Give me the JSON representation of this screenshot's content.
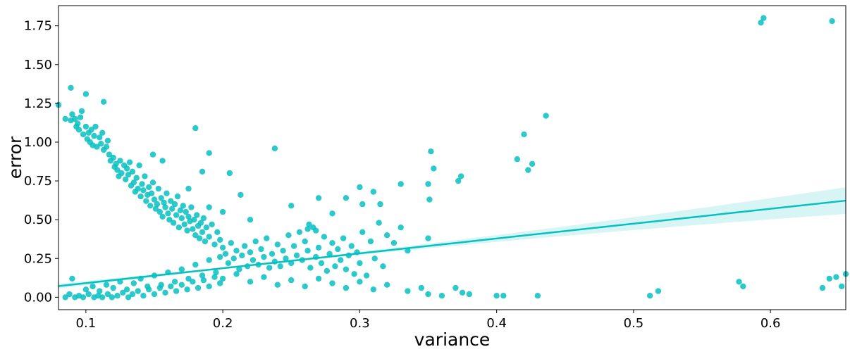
{
  "chart_data": {
    "type": "scatter",
    "title": "",
    "xlabel": "variance",
    "ylabel": "error",
    "xlim": [
      0.08,
      0.655
    ],
    "ylim": [
      -0.08,
      1.88
    ],
    "xticks": [
      0.1,
      0.2,
      0.3,
      0.4,
      0.5,
      0.6
    ],
    "xtick_labels": [
      "0.1",
      "0.2",
      "0.3",
      "0.4",
      "0.5",
      "0.6"
    ],
    "yticks": [
      0.0,
      0.25,
      0.5,
      0.75,
      1.0,
      1.25,
      1.5,
      1.75
    ],
    "ytick_labels": [
      "0.00",
      "0.25",
      "0.50",
      "0.75",
      "1.00",
      "1.25",
      "1.50",
      "1.75"
    ],
    "grid": false,
    "legend": "none",
    "color": "#06c0c0",
    "band_color": "#b8ecec",
    "regression": {
      "slope": 0.958,
      "intercept": -0.0045,
      "x_range": [
        0.08,
        0.655
      ],
      "ci_upper_end": 0.7,
      "ci_lower_end": 0.54
    },
    "points": [
      [
        0.08,
        1.24
      ],
      [
        0.085,
        1.15
      ],
      [
        0.089,
        1.14
      ],
      [
        0.09,
        1.18
      ],
      [
        0.092,
        1.15
      ],
      [
        0.093,
        1.1
      ],
      [
        0.094,
        1.12
      ],
      [
        0.095,
        1.08
      ],
      [
        0.096,
        1.16
      ],
      [
        0.097,
        1.2
      ],
      [
        0.098,
        1.05
      ],
      [
        0.1,
        1.1
      ],
      [
        0.101,
        1.02
      ],
      [
        0.102,
        1.06
      ],
      [
        0.103,
        1.0
      ],
      [
        0.104,
        1.08
      ],
      [
        0.105,
        0.98
      ],
      [
        0.106,
        1.04
      ],
      [
        0.107,
        1.1
      ],
      [
        0.108,
        0.97
      ],
      [
        0.11,
        1.03
      ],
      [
        0.111,
        0.99
      ],
      [
        0.112,
        1.06
      ],
      [
        0.113,
        0.95
      ],
      [
        0.115,
        0.97
      ],
      [
        0.116,
        1.01
      ],
      [
        0.117,
        0.92
      ],
      [
        0.118,
        0.88
      ],
      [
        0.12,
        0.9
      ],
      [
        0.121,
        0.84
      ],
      [
        0.122,
        0.86
      ],
      [
        0.123,
        0.82
      ],
      [
        0.124,
        0.78
      ],
      [
        0.125,
        0.88
      ],
      [
        0.126,
        0.8
      ],
      [
        0.128,
        0.85
      ],
      [
        0.129,
        0.76
      ],
      [
        0.13,
        0.83
      ],
      [
        0.131,
        0.79
      ],
      [
        0.132,
        0.87
      ],
      [
        0.133,
        0.72
      ],
      [
        0.134,
        0.81
      ],
      [
        0.135,
        0.74
      ],
      [
        0.136,
        0.68
      ],
      [
        0.137,
        0.77
      ],
      [
        0.138,
        0.7
      ],
      [
        0.139,
        0.85
      ],
      [
        0.14,
        0.65
      ],
      [
        0.141,
        0.73
      ],
      [
        0.142,
        0.69
      ],
      [
        0.143,
        0.78
      ],
      [
        0.144,
        0.62
      ],
      [
        0.145,
        0.66
      ],
      [
        0.146,
        0.71
      ],
      [
        0.147,
        0.59
      ],
      [
        0.148,
        0.67
      ],
      [
        0.149,
        0.74
      ],
      [
        0.15,
        0.63
      ],
      [
        0.151,
        0.57
      ],
      [
        0.152,
        0.6
      ],
      [
        0.153,
        0.7
      ],
      [
        0.154,
        0.55
      ],
      [
        0.155,
        0.64
      ],
      [
        0.156,
        0.52
      ],
      [
        0.157,
        0.61
      ],
      [
        0.158,
        0.58
      ],
      [
        0.159,
        0.67
      ],
      [
        0.16,
        0.54
      ],
      [
        0.161,
        0.5
      ],
      [
        0.162,
        0.62
      ],
      [
        0.163,
        0.57
      ],
      [
        0.164,
        0.48
      ],
      [
        0.165,
        0.6
      ],
      [
        0.166,
        0.53
      ],
      [
        0.167,
        0.65
      ],
      [
        0.168,
        0.45
      ],
      [
        0.169,
        0.56
      ],
      [
        0.17,
        0.51
      ],
      [
        0.171,
        0.59
      ],
      [
        0.172,
        0.47
      ],
      [
        0.173,
        0.55
      ],
      [
        0.174,
        0.43
      ],
      [
        0.175,
        0.52
      ],
      [
        0.176,
        0.49
      ],
      [
        0.177,
        0.58
      ],
      [
        0.178,
        0.44
      ],
      [
        0.179,
        0.5
      ],
      [
        0.18,
        0.4
      ],
      [
        0.181,
        0.53
      ],
      [
        0.182,
        0.46
      ],
      [
        0.183,
        0.38
      ],
      [
        0.184,
        0.48
      ],
      [
        0.185,
        0.42
      ],
      [
        0.186,
        0.51
      ],
      [
        0.187,
        0.36
      ],
      [
        0.188,
        0.45
      ],
      [
        0.19,
        0.39
      ],
      [
        0.192,
        0.47
      ],
      [
        0.194,
        0.34
      ],
      [
        0.196,
        0.42
      ],
      [
        0.198,
        0.37
      ],
      [
        0.1,
        1.31
      ],
      [
        0.089,
        1.35
      ],
      [
        0.113,
        1.26
      ],
      [
        0.18,
        1.09
      ],
      [
        0.149,
        0.92
      ],
      [
        0.156,
        0.88
      ],
      [
        0.19,
        0.93
      ],
      [
        0.185,
        0.81
      ],
      [
        0.238,
        0.96
      ],
      [
        0.205,
        0.8
      ],
      [
        0.213,
        0.66
      ],
      [
        0.22,
        0.5
      ],
      [
        0.19,
        0.58
      ],
      [
        0.2,
        0.55
      ],
      [
        0.175,
        0.7
      ],
      [
        0.2,
        0.32
      ],
      [
        0.202,
        0.28
      ],
      [
        0.204,
        0.22
      ],
      [
        0.206,
        0.35
      ],
      [
        0.208,
        0.25
      ],
      [
        0.21,
        0.3
      ],
      [
        0.212,
        0.18
      ],
      [
        0.214,
        0.27
      ],
      [
        0.216,
        0.33
      ],
      [
        0.218,
        0.2
      ],
      [
        0.22,
        0.29
      ],
      [
        0.222,
        0.24
      ],
      [
        0.224,
        0.36
      ],
      [
        0.226,
        0.21
      ],
      [
        0.228,
        0.31
      ],
      [
        0.23,
        0.26
      ],
      [
        0.232,
        0.38
      ],
      [
        0.234,
        0.19
      ],
      [
        0.236,
        0.28
      ],
      [
        0.238,
        0.23
      ],
      [
        0.24,
        0.34
      ],
      [
        0.242,
        0.2
      ],
      [
        0.244,
        0.3
      ],
      [
        0.246,
        0.25
      ],
      [
        0.248,
        0.4
      ],
      [
        0.25,
        0.22
      ],
      [
        0.252,
        0.33
      ],
      [
        0.254,
        0.27
      ],
      [
        0.256,
        0.42
      ],
      [
        0.258,
        0.24
      ],
      [
        0.26,
        0.36
      ],
      [
        0.262,
        0.3
      ],
      [
        0.264,
        0.19
      ],
      [
        0.266,
        0.45
      ],
      [
        0.268,
        0.26
      ],
      [
        0.27,
        0.32
      ],
      [
        0.272,
        0.22
      ],
      [
        0.274,
        0.39
      ],
      [
        0.276,
        0.17
      ],
      [
        0.278,
        0.28
      ],
      [
        0.28,
        0.35
      ],
      [
        0.282,
        0.2
      ],
      [
        0.284,
        0.31
      ],
      [
        0.286,
        0.24
      ],
      [
        0.288,
        0.38
      ],
      [
        0.29,
        0.18
      ],
      [
        0.292,
        0.27
      ],
      [
        0.294,
        0.33
      ],
      [
        0.296,
        0.15
      ],
      [
        0.298,
        0.29
      ],
      [
        0.3,
        0.22
      ],
      [
        0.302,
        0.42
      ],
      [
        0.305,
        0.14
      ],
      [
        0.308,
        0.36
      ],
      [
        0.311,
        0.25
      ],
      [
        0.314,
        0.48
      ],
      [
        0.317,
        0.2
      ],
      [
        0.32,
        0.4
      ],
      [
        0.325,
        0.35
      ],
      [
        0.33,
        0.45
      ],
      [
        0.335,
        0.3
      ],
      [
        0.35,
        0.38
      ],
      [
        0.27,
        0.64
      ],
      [
        0.29,
        0.64
      ],
      [
        0.3,
        0.71
      ],
      [
        0.302,
        0.6
      ],
      [
        0.31,
        0.68
      ],
      [
        0.315,
        0.6
      ],
      [
        0.33,
        0.73
      ],
      [
        0.35,
        0.73
      ],
      [
        0.351,
        0.63
      ],
      [
        0.352,
        0.94
      ],
      [
        0.354,
        0.83
      ],
      [
        0.372,
        0.75
      ],
      [
        0.374,
        0.78
      ],
      [
        0.415,
        0.89
      ],
      [
        0.42,
        1.05
      ],
      [
        0.423,
        0.82
      ],
      [
        0.426,
        0.86
      ],
      [
        0.436,
        1.17
      ],
      [
        0.25,
        0.59
      ],
      [
        0.263,
        0.47
      ],
      [
        0.268,
        0.43
      ],
      [
        0.28,
        0.54
      ],
      [
        0.262,
        0.44
      ],
      [
        0.09,
        0.12
      ],
      [
        0.1,
        0.05
      ],
      [
        0.105,
        0.07
      ],
      [
        0.11,
        0.04
      ],
      [
        0.115,
        0.08
      ],
      [
        0.12,
        0.06
      ],
      [
        0.125,
        0.1
      ],
      [
        0.13,
        0.05
      ],
      [
        0.135,
        0.09
      ],
      [
        0.14,
        0.12
      ],
      [
        0.145,
        0.07
      ],
      [
        0.15,
        0.14
      ],
      [
        0.155,
        0.08
      ],
      [
        0.16,
        0.16
      ],
      [
        0.165,
        0.1
      ],
      [
        0.17,
        0.18
      ],
      [
        0.175,
        0.12
      ],
      [
        0.18,
        0.21
      ],
      [
        0.185,
        0.14
      ],
      [
        0.19,
        0.24
      ],
      [
        0.195,
        0.16
      ],
      [
        0.198,
        0.26
      ],
      [
        0.2,
        0.12
      ],
      [
        0.21,
        0.15
      ],
      [
        0.22,
        0.1
      ],
      [
        0.23,
        0.13
      ],
      [
        0.24,
        0.08
      ],
      [
        0.25,
        0.11
      ],
      [
        0.26,
        0.07
      ],
      [
        0.27,
        0.12
      ],
      [
        0.28,
        0.09
      ],
      [
        0.29,
        0.06
      ],
      [
        0.3,
        0.1
      ],
      [
        0.31,
        0.05
      ],
      [
        0.32,
        0.08
      ],
      [
        0.335,
        0.04
      ],
      [
        0.345,
        0.06
      ],
      [
        0.35,
        0.02
      ],
      [
        0.36,
        0.01
      ],
      [
        0.37,
        0.06
      ],
      [
        0.375,
        0.03
      ],
      [
        0.38,
        0.02
      ],
      [
        0.4,
        0.01
      ],
      [
        0.405,
        0.01
      ],
      [
        0.43,
        0.01
      ],
      [
        0.512,
        0.01
      ],
      [
        0.518,
        0.04
      ],
      [
        0.577,
        0.1
      ],
      [
        0.58,
        0.07
      ],
      [
        0.595,
        1.8
      ],
      [
        0.593,
        1.77
      ],
      [
        0.645,
        1.78
      ],
      [
        0.638,
        0.06
      ],
      [
        0.643,
        0.12
      ],
      [
        0.648,
        0.13
      ],
      [
        0.652,
        0.07
      ],
      [
        0.655,
        0.15
      ],
      [
        0.085,
        0.0
      ],
      [
        0.088,
        0.02
      ],
      [
        0.092,
        0.0
      ],
      [
        0.095,
        0.01
      ],
      [
        0.098,
        0.0
      ],
      [
        0.102,
        0.02
      ],
      [
        0.106,
        0.0
      ],
      [
        0.109,
        0.01
      ],
      [
        0.112,
        0.0
      ],
      [
        0.116,
        0.02
      ],
      [
        0.119,
        0.0
      ],
      [
        0.123,
        0.01
      ],
      [
        0.127,
        0.03
      ],
      [
        0.131,
        0.0
      ],
      [
        0.134,
        0.02
      ],
      [
        0.138,
        0.04
      ],
      [
        0.142,
        0.01
      ],
      [
        0.146,
        0.05
      ],
      [
        0.15,
        0.02
      ],
      [
        0.154,
        0.06
      ],
      [
        0.158,
        0.03
      ],
      [
        0.162,
        0.07
      ],
      [
        0.166,
        0.04
      ],
      [
        0.17,
        0.08
      ],
      [
        0.174,
        0.05
      ],
      [
        0.178,
        0.1
      ],
      [
        0.182,
        0.06
      ],
      [
        0.186,
        0.11
      ],
      [
        0.19,
        0.07
      ],
      [
        0.194,
        0.13
      ],
      [
        0.198,
        0.09
      ]
    ]
  }
}
